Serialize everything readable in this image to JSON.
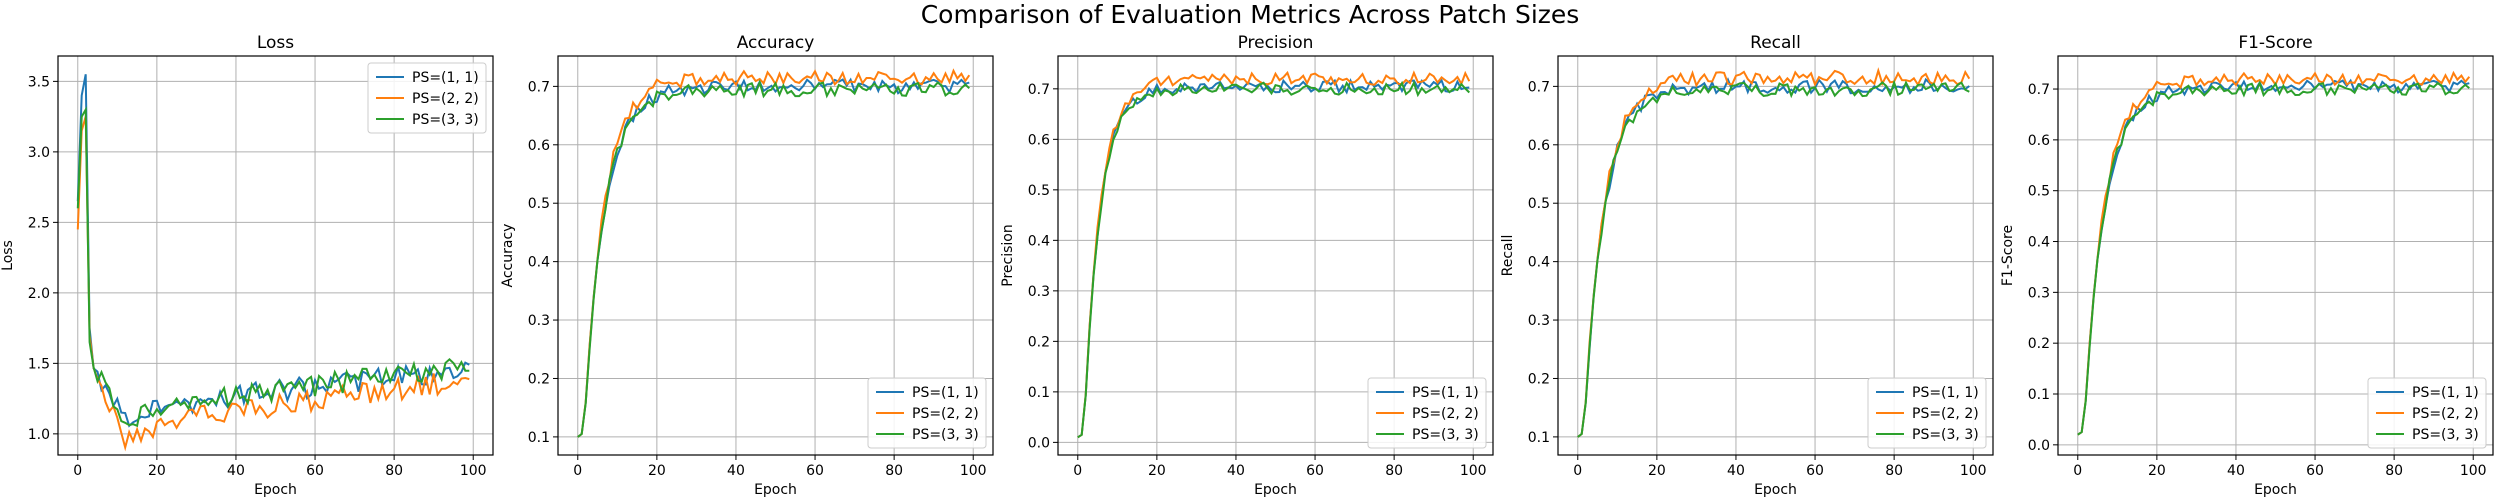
{
  "figure": {
    "suptitle": "Comparison of Evaluation Metrics Across Patch Sizes"
  },
  "chart_data": [
    {
      "type": "line",
      "title": "Loss",
      "xlabel": "Epoch",
      "ylabel": "Loss",
      "xlim": [
        -5,
        105
      ],
      "ylim": [
        0.85,
        3.68
      ],
      "xticks": [
        0,
        20,
        40,
        60,
        80,
        100
      ],
      "yticks": [
        1.0,
        1.5,
        2.0,
        2.5,
        3.0,
        3.5
      ],
      "ytick_labels": [
        "1.0",
        "1.5",
        "2.0",
        "2.5",
        "3.0",
        "3.5"
      ],
      "grid": true,
      "legend": "upper right",
      "curve": {
        "start": [
          2.65,
          2.45,
          2.6
        ],
        "peak": [
          3.55,
          3.25,
          3.3
        ],
        "trough_epoch": 12,
        "trough": [
          1.12,
          0.98,
          1.1
        ],
        "end": [
          1.45,
          1.38,
          1.47
        ],
        "noise": [
          0.08,
          0.08,
          0.08
        ]
      },
      "series": [
        {
          "name": "PS=(1, 1)",
          "color": "#1f77b4"
        },
        {
          "name": "PS=(2, 2)",
          "color": "#ff7f0e"
        },
        {
          "name": "PS=(3, 3)",
          "color": "#2ca02c"
        }
      ]
    },
    {
      "type": "line",
      "title": "Accuracy",
      "xlabel": "Epoch",
      "ylabel": "Accuracy",
      "xlim": [
        -5,
        105
      ],
      "ylim": [
        0.069,
        0.752
      ],
      "xticks": [
        0,
        20,
        40,
        60,
        80,
        100
      ],
      "yticks": [
        0.1,
        0.2,
        0.3,
        0.4,
        0.5,
        0.6,
        0.7
      ],
      "ytick_labels": [
        "0.1",
        "0.2",
        "0.3",
        "0.4",
        "0.5",
        "0.6",
        "0.7"
      ],
      "grid": true,
      "legend": "lower right",
      "curve": {
        "start": 0.1,
        "plateau": [
          0.7,
          0.715,
          0.695
        ],
        "tau": 5,
        "noise": 0.012
      },
      "series": [
        {
          "name": "PS=(1, 1)",
          "color": "#1f77b4"
        },
        {
          "name": "PS=(2, 2)",
          "color": "#ff7f0e"
        },
        {
          "name": "PS=(3, 3)",
          "color": "#2ca02c"
        }
      ]
    },
    {
      "type": "line",
      "title": "Precision",
      "xlabel": "Epoch",
      "ylabel": "Precision",
      "xlim": [
        -5,
        105
      ],
      "ylim": [
        -0.025,
        0.765
      ],
      "xticks": [
        0,
        20,
        40,
        60,
        80,
        100
      ],
      "yticks": [
        0.0,
        0.1,
        0.2,
        0.3,
        0.4,
        0.5,
        0.6,
        0.7
      ],
      "ytick_labels": [
        "0.0",
        "0.1",
        "0.2",
        "0.3",
        "0.4",
        "0.5",
        "0.6",
        "0.7"
      ],
      "grid": true,
      "legend": "lower right",
      "curve": {
        "start": 0.01,
        "plateau": [
          0.705,
          0.72,
          0.7
        ],
        "tau": 4,
        "noise": 0.012
      },
      "series": [
        {
          "name": "PS=(1, 1)",
          "color": "#1f77b4"
        },
        {
          "name": "PS=(2, 2)",
          "color": "#ff7f0e"
        },
        {
          "name": "PS=(3, 3)",
          "color": "#2ca02c"
        }
      ]
    },
    {
      "type": "line",
      "title": "Recall",
      "xlabel": "Epoch",
      "ylabel": "Recall",
      "xlim": [
        -5,
        105
      ],
      "ylim": [
        0.069,
        0.752
      ],
      "xticks": [
        0,
        20,
        40,
        60,
        80,
        100
      ],
      "yticks": [
        0.1,
        0.2,
        0.3,
        0.4,
        0.5,
        0.6,
        0.7
      ],
      "ytick_labels": [
        "0.1",
        "0.2",
        "0.3",
        "0.4",
        "0.5",
        "0.6",
        "0.7"
      ],
      "grid": true,
      "legend": "lower right",
      "curve": {
        "start": 0.1,
        "plateau": [
          0.7,
          0.715,
          0.695
        ],
        "tau": 5,
        "noise": 0.012
      },
      "series": [
        {
          "name": "PS=(1, 1)",
          "color": "#1f77b4"
        },
        {
          "name": "PS=(2, 2)",
          "color": "#ff7f0e"
        },
        {
          "name": "PS=(3, 3)",
          "color": "#2ca02c"
        }
      ]
    },
    {
      "type": "line",
      "title": "F1-Score",
      "xlabel": "Epoch",
      "ylabel": "F1-Score",
      "xlim": [
        -5,
        105
      ],
      "ylim": [
        -0.02,
        0.765
      ],
      "xticks": [
        0,
        20,
        40,
        60,
        80,
        100
      ],
      "yticks": [
        0.0,
        0.1,
        0.2,
        0.3,
        0.4,
        0.5,
        0.6,
        0.7
      ],
      "ytick_labels": [
        "0.0",
        "0.1",
        "0.2",
        "0.3",
        "0.4",
        "0.5",
        "0.6",
        "0.7"
      ],
      "grid": true,
      "legend": "lower right",
      "curve": {
        "start": 0.02,
        "plateau": [
          0.705,
          0.72,
          0.7
        ],
        "tau": 5,
        "noise": 0.012
      },
      "series": [
        {
          "name": "PS=(1, 1)",
          "color": "#1f77b4"
        },
        {
          "name": "PS=(2, 2)",
          "color": "#ff7f0e"
        },
        {
          "name": "PS=(3, 3)",
          "color": "#2ca02c"
        }
      ]
    }
  ]
}
